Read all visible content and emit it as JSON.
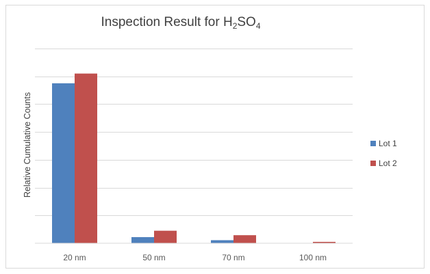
{
  "chart_data": {
    "type": "bar",
    "title_main": "Inspection Result for H",
    "title_sub1": "2",
    "title_mid": "SO",
    "title_sub2": "4",
    "title": "Inspection Result for H2SO4",
    "xlabel": "",
    "ylabel": "Relative Cumulative Counts",
    "categories": [
      "20 nm",
      "50 nm",
      "70 nm",
      "100 nm"
    ],
    "series": [
      {
        "name": "Lot 1",
        "color": "#4f81bd",
        "values": [
          5.75,
          0.22,
          0.11,
          0.0
        ]
      },
      {
        "name": "Lot 2",
        "color": "#c0504d",
        "values": [
          6.1,
          0.45,
          0.29,
          0.05
        ]
      }
    ],
    "ylim": [
      0,
      7
    ],
    "y_tick_labels_shown": false,
    "grid": true,
    "legend_position": "right"
  }
}
